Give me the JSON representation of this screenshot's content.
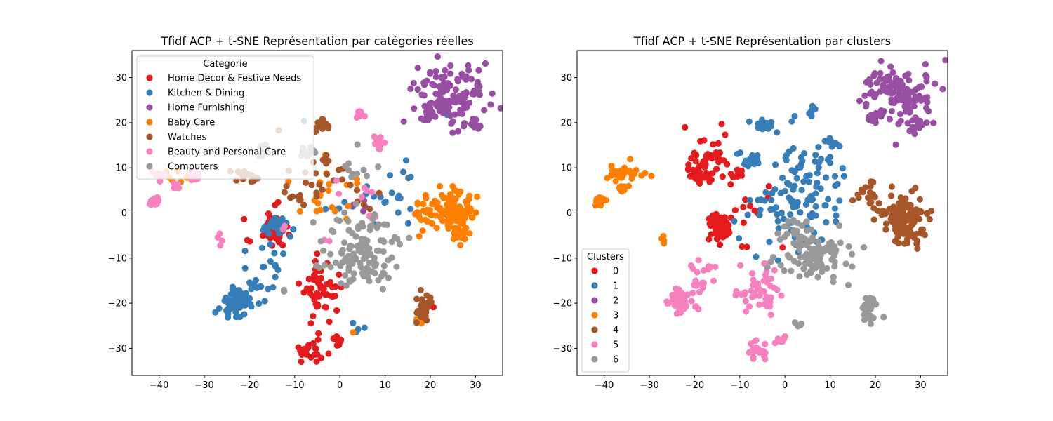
{
  "chart_data": [
    {
      "type": "scatter",
      "title": "Tfidf ACP + t-SNE Représentation par catégories réelles",
      "xlabel": "",
      "ylabel": "",
      "xlim": [
        -46,
        36
      ],
      "ylim": [
        -36,
        36
      ],
      "xticks": [
        -40,
        -30,
        -20,
        -10,
        0,
        10,
        20,
        30
      ],
      "yticks": [
        -30,
        -20,
        -10,
        0,
        10,
        20,
        30
      ],
      "grid": false,
      "legend": {
        "title": "Categorie",
        "placement": "upper-left"
      },
      "series": [
        {
          "name": "Home Decor & Festive Needs",
          "color": "#e41a1c",
          "clusters": [
            {
              "x": -14.5,
              "y": -3.3,
              "sx": 1.2,
              "sy": 1.5,
              "n": 70
            },
            {
              "x": -4.5,
              "y": -17,
              "sx": 2.2,
              "sy": 3.5,
              "n": 55
            },
            {
              "x": -6.5,
              "y": -30.5,
              "sx": 1.5,
              "sy": 1.3,
              "n": 22
            },
            {
              "x": -0.5,
              "y": -28,
              "sx": 0.6,
              "sy": 0.6,
              "n": 10
            },
            {
              "x": -14,
              "y": 2.5,
              "sx": 0.3,
              "sy": 0.3,
              "n": 2
            },
            {
              "x": -20,
              "y": -6.5,
              "sx": 0.3,
              "sy": 0.4,
              "n": 2
            },
            {
              "x": -21,
              "y": -2,
              "sx": 0.3,
              "sy": 0.3,
              "n": 1
            },
            {
              "x": 21,
              "y": -21.5,
              "sx": 0.3,
              "sy": 0.3,
              "n": 1
            }
          ]
        },
        {
          "name": "Kitchen & Dining",
          "color": "#377eb8",
          "clusters": [
            {
              "x": -22.5,
              "y": -19.5,
              "sx": 1.3,
              "sy": 1.3,
              "n": 65
            },
            {
              "x": -25.5,
              "y": -21,
              "sx": 1.3,
              "sy": 1.4,
              "n": 12
            },
            {
              "x": -19,
              "y": -16,
              "sx": 1.5,
              "sy": 2.5,
              "n": 15
            },
            {
              "x": -15,
              "y": -11,
              "sx": 1.5,
              "sy": 2.0,
              "n": 10
            },
            {
              "x": -14,
              "y": -3.5,
              "sx": 1.3,
              "sy": 1.3,
              "n": 30
            },
            {
              "x": 12,
              "y": 4,
              "sx": 2.5,
              "sy": 3.5,
              "n": 16
            },
            {
              "x": 4,
              "y": -25.5,
              "sx": 1.2,
              "sy": 1.0,
              "n": 4
            },
            {
              "x": -8,
              "y": 20.5,
              "sx": 0.3,
              "sy": 0.3,
              "n": 1
            },
            {
              "x": 24,
              "y": 22,
              "sx": 0.3,
              "sy": 0.3,
              "n": 1
            },
            {
              "x": 3,
              "y": 2,
              "sx": 3.0,
              "sy": 3.0,
              "n": 8
            }
          ]
        },
        {
          "name": "Home Furnishing",
          "color": "#984ea3",
          "clusters": [
            {
              "x": 24.5,
              "y": 26.5,
              "sx": 4.0,
              "sy": 3.5,
              "n": 120
            },
            {
              "x": 19.5,
              "y": 21.5,
              "sx": 0.7,
              "sy": 0.7,
              "n": 10
            },
            {
              "x": 29.5,
              "y": 19.5,
              "sx": 0.8,
              "sy": 0.8,
              "n": 12
            },
            {
              "x": 4,
              "y": 1.5,
              "sx": 1.5,
              "sy": 1.5,
              "n": 4
            }
          ]
        },
        {
          "name": "Baby Care",
          "color": "#ff7f00",
          "clusters": [
            {
              "x": 24.5,
              "y": 0,
              "sx": 2.3,
              "sy": 2.3,
              "n": 100
            },
            {
              "x": 19,
              "y": 1,
              "sx": 1.5,
              "sy": 2.2,
              "n": 20
            },
            {
              "x": 26.5,
              "y": -4.5,
              "sx": 1.2,
              "sy": 1.0,
              "n": 20
            },
            {
              "x": -3,
              "y": 4,
              "sx": 5.0,
              "sy": 3.5,
              "n": 20
            },
            {
              "x": -36,
              "y": 8.5,
              "sx": 1.2,
              "sy": 0.8,
              "n": 8
            },
            {
              "x": 3,
              "y": -26.5,
              "sx": 0.3,
              "sy": 0.3,
              "n": 1
            },
            {
              "x": 17.5,
              "y": -23,
              "sx": 0.5,
              "sy": 0.8,
              "n": 3
            }
          ]
        },
        {
          "name": "Watches",
          "color": "#a65628",
          "clusters": [
            {
              "x": 18.5,
              "y": -21.5,
              "sx": 0.9,
              "sy": 1.5,
              "n": 35
            },
            {
              "x": -4,
              "y": 19.5,
              "sx": 0.9,
              "sy": 0.7,
              "n": 15
            },
            {
              "x": -6,
              "y": 8.5,
              "sx": 4.0,
              "sy": 4.5,
              "n": 30
            },
            {
              "x": -20,
              "y": 8.5,
              "sx": 1.5,
              "sy": 1.0,
              "n": 15
            },
            {
              "x": 5,
              "y": 3.5,
              "sx": 2.0,
              "sy": 2.0,
              "n": 6
            }
          ]
        },
        {
          "name": "Beauty and Personal Care",
          "color": "#f781bf",
          "clusters": [
            {
              "x": -41,
              "y": 2.5,
              "sx": 0.5,
              "sy": 0.4,
              "n": 30
            },
            {
              "x": -40,
              "y": 8.5,
              "sx": 0.7,
              "sy": 0.5,
              "n": 12
            },
            {
              "x": -36,
              "y": 6,
              "sx": 0.4,
              "sy": 0.4,
              "n": 10
            },
            {
              "x": -32,
              "y": 8,
              "sx": 0.7,
              "sy": 0.5,
              "n": 12
            },
            {
              "x": 4.5,
              "y": 22,
              "sx": 0.4,
              "sy": 0.4,
              "n": 10
            },
            {
              "x": 8.5,
              "y": 15.5,
              "sx": 1.0,
              "sy": 0.8,
              "n": 10
            },
            {
              "x": -26.5,
              "y": -6.5,
              "sx": 0.3,
              "sy": 0.6,
              "n": 4
            },
            {
              "x": 3.5,
              "y": 4,
              "sx": 3.0,
              "sy": 3.0,
              "n": 8
            },
            {
              "x": -12,
              "y": -3,
              "sx": 0.4,
              "sy": 0.4,
              "n": 2
            },
            {
              "x": -3,
              "y": -6.5,
              "sx": 0.4,
              "sy": 0.4,
              "n": 2
            }
          ]
        },
        {
          "name": "Computers",
          "color": "#999999",
          "clusters": [
            {
              "x": 5.5,
              "y": -10,
              "sx": 3.5,
              "sy": 3.0,
              "n": 90
            },
            {
              "x": 4,
              "y": -3,
              "sx": 3.0,
              "sy": 2.5,
              "n": 25
            },
            {
              "x": -7.5,
              "y": 13.5,
              "sx": 1.0,
              "sy": 0.8,
              "n": 12
            },
            {
              "x": -17,
              "y": 14,
              "sx": 1.0,
              "sy": 1.0,
              "n": 10
            },
            {
              "x": 5,
              "y": 9,
              "sx": 3.0,
              "sy": 3.0,
              "n": 10
            },
            {
              "x": -5,
              "y": -11.5,
              "sx": 2.0,
              "sy": 1.0,
              "n": 6
            },
            {
              "x": -12,
              "y": -17.5,
              "sx": 0.5,
              "sy": 0.3,
              "n": 2
            }
          ]
        }
      ]
    },
    {
      "type": "scatter",
      "title": "Tfidf ACP + t-SNE Représentation par clusters",
      "xlabel": "",
      "ylabel": "",
      "xlim": [
        -46,
        36
      ],
      "ylim": [
        -36,
        36
      ],
      "xticks": [
        -40,
        -30,
        -20,
        -10,
        0,
        10,
        20,
        30
      ],
      "yticks": [
        -30,
        -20,
        -10,
        0,
        10,
        20,
        30
      ],
      "grid": false,
      "legend": {
        "title": "Clusters",
        "placement": "lower-left"
      },
      "series": [
        {
          "name": "0",
          "color": "#e41a1c",
          "clusters": [
            {
              "x": -14.5,
              "y": -3.3,
              "sx": 1.2,
              "sy": 1.5,
              "n": 70
            },
            {
              "x": -17.5,
              "y": 11,
              "sx": 2.0,
              "sy": 3.0,
              "n": 45
            },
            {
              "x": -19.5,
              "y": 7.5,
              "sx": 1.5,
              "sy": 1.5,
              "n": 15
            },
            {
              "x": -9.5,
              "y": 8,
              "sx": 1.5,
              "sy": 1.0,
              "n": 8
            },
            {
              "x": -8,
              "y": -1.5,
              "sx": 3.0,
              "sy": 4.0,
              "n": 15
            },
            {
              "x": -13,
              "y": 17.5,
              "sx": 0.3,
              "sy": 0.3,
              "n": 1
            }
          ]
        },
        {
          "name": "1",
          "color": "#377eb8",
          "clusters": [
            {
              "x": 3,
              "y": 4,
              "sx": 5.0,
              "sy": 6.0,
              "n": 120
            },
            {
              "x": -4,
              "y": 19.5,
              "sx": 1.0,
              "sy": 0.8,
              "n": 15
            },
            {
              "x": 6,
              "y": 22,
              "sx": 0.5,
              "sy": 0.5,
              "n": 8
            },
            {
              "x": 10.5,
              "y": 15.5,
              "sx": 1.0,
              "sy": 0.8,
              "n": 10
            },
            {
              "x": -8,
              "y": 12.5,
              "sx": 1.5,
              "sy": 1.0,
              "n": 15
            },
            {
              "x": -8,
              "y": 20.5,
              "sx": 0.3,
              "sy": 0.3,
              "n": 1
            }
          ]
        },
        {
          "name": "2",
          "color": "#984ea3",
          "clusters": [
            {
              "x": 24.5,
              "y": 26.5,
              "sx": 4.0,
              "sy": 3.5,
              "n": 120
            },
            {
              "x": 19.5,
              "y": 21.5,
              "sx": 0.7,
              "sy": 0.7,
              "n": 10
            },
            {
              "x": 29.5,
              "y": 19.5,
              "sx": 0.8,
              "sy": 0.8,
              "n": 12
            }
          ]
        },
        {
          "name": "3",
          "color": "#ff7f00",
          "clusters": [
            {
              "x": -41,
              "y": 2.5,
              "sx": 0.5,
              "sy": 0.4,
              "n": 30
            },
            {
              "x": -35,
              "y": 9,
              "sx": 2.0,
              "sy": 1.2,
              "n": 30
            },
            {
              "x": -36,
              "y": 5.5,
              "sx": 0.5,
              "sy": 0.4,
              "n": 8
            },
            {
              "x": -27,
              "y": -6,
              "sx": 0.4,
              "sy": 0.6,
              "n": 4
            }
          ]
        },
        {
          "name": "4",
          "color": "#a65628",
          "clusters": [
            {
              "x": 26,
              "y": -1,
              "sx": 2.5,
              "sy": 2.5,
              "n": 110
            },
            {
              "x": 19,
              "y": 3,
              "sx": 1.5,
              "sy": 2.0,
              "n": 20
            },
            {
              "x": 27,
              "y": -5,
              "sx": 1.2,
              "sy": 1.0,
              "n": 15
            }
          ]
        },
        {
          "name": "5",
          "color": "#f781bf",
          "clusters": [
            {
              "x": -23,
              "y": -19.5,
              "sx": 1.3,
              "sy": 1.3,
              "n": 65
            },
            {
              "x": -19,
              "y": -15,
              "sx": 1.5,
              "sy": 2.0,
              "n": 15
            },
            {
              "x": -5,
              "y": -17,
              "sx": 2.0,
              "sy": 3.0,
              "n": 40
            },
            {
              "x": -6,
              "y": -30.5,
              "sx": 1.0,
              "sy": 1.0,
              "n": 22
            },
            {
              "x": -1,
              "y": -28,
              "sx": 0.5,
              "sy": 0.5,
              "n": 10
            },
            {
              "x": -10,
              "y": -17.5,
              "sx": 1.5,
              "sy": 0.5,
              "n": 5
            },
            {
              "x": -17,
              "y": -12.5,
              "sx": 1.0,
              "sy": 1.0,
              "n": 5
            }
          ]
        },
        {
          "name": "6",
          "color": "#999999",
          "clusters": [
            {
              "x": 7,
              "y": -10,
              "sx": 3.5,
              "sy": 3.0,
              "n": 90
            },
            {
              "x": 2.5,
              "y": -3,
              "sx": 2.0,
              "sy": 1.5,
              "n": 20
            },
            {
              "x": 18.5,
              "y": -21.5,
              "sx": 1.0,
              "sy": 1.5,
              "n": 35
            },
            {
              "x": 3.5,
              "y": -25.5,
              "sx": 1.0,
              "sy": 1.0,
              "n": 5
            },
            {
              "x": -2.5,
              "y": -10.5,
              "sx": 1.0,
              "sy": 0.8,
              "n": 4
            }
          ]
        }
      ]
    }
  ]
}
